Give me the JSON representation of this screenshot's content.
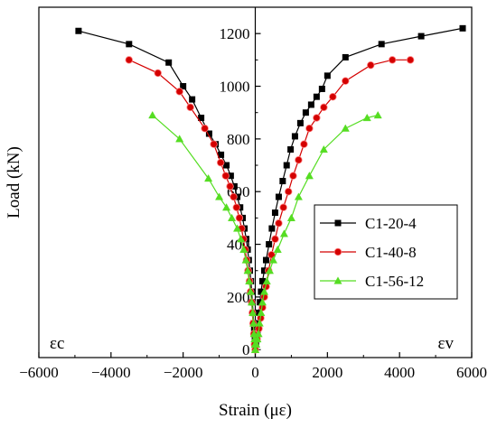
{
  "chart_data": {
    "type": "line",
    "xlabel": "Strain (με)",
    "ylabel": "Load (kN)",
    "xlim": [
      -6000,
      6000
    ],
    "ylim": [
      -30,
      1300
    ],
    "x_ticks": [
      -6000,
      -4000,
      -2000,
      0,
      2000,
      4000,
      6000
    ],
    "y_ticks": [
      0,
      200,
      400,
      600,
      800,
      1000,
      1200
    ],
    "legend_position": "center-right",
    "corner_labels": {
      "left": "εc",
      "right": "εv"
    },
    "series": [
      {
        "name": "C1-20-4",
        "color": "#000000",
        "marker": "square",
        "branches": [
          {
            "x": [
              0,
              -5,
              -10,
              -20,
              -30,
              -45,
              -60,
              -80,
              -100,
              -120,
              -150,
              -180,
              -210,
              -250,
              -300,
              -350,
              -420,
              -500,
              -580,
              -680,
              -800,
              -950,
              -1100,
              -1280,
              -1500,
              -1750,
              -2000,
              -2400,
              -3500,
              -4900
            ],
            "y": [
              0,
              20,
              40,
              60,
              80,
              100,
              140,
              180,
              220,
              260,
              300,
              340,
              380,
              420,
              460,
              500,
              540,
              580,
              620,
              660,
              700,
              740,
              780,
              820,
              880,
              950,
              1000,
              1090,
              1160,
              1210
            ]
          },
          {
            "x": [
              0,
              20,
              40,
              60,
              80,
              100,
              130,
              160,
              200,
              250,
              300,
              380,
              460,
              550,
              650,
              760,
              870,
              980,
              1100,
              1250,
              1400,
              1550,
              1700,
              1850,
              2000,
              2500,
              3500,
              4600,
              5750
            ],
            "y": [
              0,
              20,
              40,
              60,
              100,
              140,
              180,
              220,
              260,
              300,
              340,
              400,
              460,
              520,
              580,
              640,
              700,
              760,
              810,
              860,
              900,
              930,
              960,
              990,
              1040,
              1110,
              1160,
              1190,
              1220
            ]
          }
        ]
      },
      {
        "name": "C1-40-8",
        "color": "#d40000",
        "marker": "circle",
        "branches": [
          {
            "x": [
              0,
              -20,
              -40,
              -60,
              -80,
              -100,
              -130,
              -160,
              -200,
              -240,
              -280,
              -330,
              -380,
              -440,
              -520,
              -600,
              -700,
              -820,
              -960,
              -1150,
              -1400,
              -1800,
              -2100,
              -2700,
              -3500
            ],
            "y": [
              0,
              20,
              60,
              100,
              140,
              180,
              220,
              260,
              300,
              340,
              380,
              420,
              460,
              500,
              540,
              580,
              620,
              660,
              710,
              780,
              840,
              920,
              980,
              1050,
              1100
            ]
          },
          {
            "x": [
              0,
              50,
              100,
              150,
              200,
              250,
              300,
              370,
              450,
              550,
              650,
              780,
              920,
              1050,
              1200,
              1350,
              1500,
              1700,
              1900,
              2150,
              2500,
              3200,
              3800,
              4300
            ],
            "y": [
              0,
              40,
              80,
              120,
              160,
              200,
              240,
              300,
              360,
              420,
              480,
              540,
              600,
              660,
              720,
              780,
              840,
              880,
              920,
              960,
              1020,
              1080,
              1100,
              1100
            ]
          }
        ]
      },
      {
        "name": "C1-56-12",
        "color": "#55dd22",
        "marker": "triangle",
        "branches": [
          {
            "x": [
              0,
              -10,
              -20,
              -35,
              -50,
              -70,
              -100,
              -130,
              -170,
              -210,
              -260,
              -320,
              -400,
              -500,
              -650,
              -800,
              -1000,
              -1300,
              -2100,
              -2850
            ],
            "y": [
              0,
              20,
              40,
              60,
              100,
              140,
              180,
              220,
              260,
              300,
              340,
              380,
              420,
              460,
              500,
              540,
              580,
              650,
              800,
              890
            ]
          },
          {
            "x": [
              0,
              30,
              60,
              90,
              120,
              160,
              200,
              250,
              320,
              400,
              500,
              620,
              800,
              1000,
              1200,
              1500,
              1900,
              2500,
              3100,
              3400
            ],
            "y": [
              0,
              20,
              40,
              60,
              100,
              140,
              180,
              220,
              260,
              300,
              340,
              380,
              440,
              500,
              580,
              660,
              760,
              840,
              880,
              890
            ]
          }
        ]
      }
    ]
  }
}
